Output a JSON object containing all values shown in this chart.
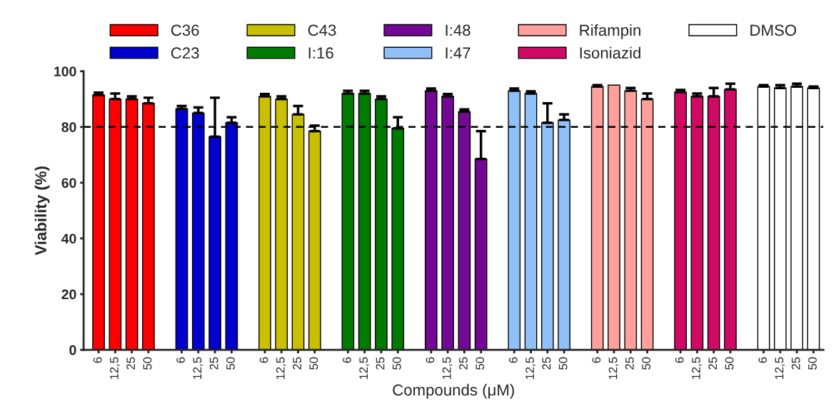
{
  "chart_data": {
    "type": "bar",
    "xlabel": "Compounds (μM)",
    "ylabel": "Viability (%)",
    "categories": [
      "6",
      "12,5",
      "25",
      "50",
      null,
      "6",
      "12,5",
      "25",
      "50",
      null,
      "6",
      "12,5",
      "25",
      "50",
      null,
      "6",
      "12,5",
      "25",
      "50",
      null,
      "6",
      "12,5",
      "25",
      "50",
      null,
      "6",
      "12,5",
      "25",
      "50",
      null,
      "6",
      "12,5",
      "25",
      "50",
      null,
      "6",
      "12,5",
      "25",
      "50",
      null,
      "6",
      "12,5",
      "25",
      "50"
    ],
    "series": [
      {
        "name": "C36",
        "color": "#ff0000",
        "values": [
          91.5,
          90,
          90,
          88.5,
          null,
          null,
          null,
          null,
          null,
          null,
          null,
          null,
          null,
          null,
          null,
          null,
          null,
          null,
          null,
          null,
          null,
          null,
          null,
          null,
          null,
          null,
          null,
          null,
          null,
          null,
          null,
          null,
          null,
          null,
          null,
          null,
          null,
          null,
          null,
          null,
          null,
          null,
          null,
          null
        ],
        "errors": [
          0.8,
          2,
          1,
          2,
          null,
          null,
          null,
          null,
          null,
          null,
          null,
          null,
          null,
          null,
          null,
          null,
          null,
          null,
          null,
          null,
          null,
          null,
          null,
          null,
          null,
          null,
          null,
          null,
          null,
          null,
          null,
          null,
          null,
          null,
          null,
          null,
          null,
          null,
          null,
          null,
          null,
          null,
          null,
          null
        ]
      },
      {
        "name": "C23",
        "color": "#0000cc",
        "values": [
          null,
          null,
          null,
          null,
          null,
          86.5,
          85,
          76.5,
          81.5,
          null,
          null,
          null,
          null,
          null,
          null,
          null,
          null,
          null,
          null,
          null,
          null,
          null,
          null,
          null,
          null,
          null,
          null,
          null,
          null,
          null,
          null,
          null,
          null,
          null,
          null,
          null,
          null,
          null,
          null,
          null,
          null,
          null,
          null,
          null
        ],
        "errors": [
          null,
          null,
          null,
          null,
          null,
          1,
          2,
          14,
          2,
          null,
          null,
          null,
          null,
          null,
          null,
          null,
          null,
          null,
          null,
          null,
          null,
          null,
          null,
          null,
          null,
          null,
          null,
          null,
          null,
          null,
          null,
          null,
          null,
          null,
          null,
          null,
          null,
          null,
          null,
          null,
          null,
          null,
          null,
          null
        ]
      },
      {
        "name": "C43",
        "color": "#c8c000",
        "values": [
          null,
          null,
          null,
          null,
          null,
          null,
          null,
          null,
          null,
          null,
          91,
          90,
          84.5,
          78.5,
          null,
          null,
          null,
          null,
          null,
          null,
          null,
          null,
          null,
          null,
          null,
          null,
          null,
          null,
          null,
          null,
          null,
          null,
          null,
          null,
          null,
          null,
          null,
          null,
          null,
          null,
          null,
          null,
          null,
          null
        ],
        "errors": [
          null,
          null,
          null,
          null,
          null,
          null,
          null,
          null,
          null,
          null,
          0.8,
          1,
          3,
          2,
          null,
          null,
          null,
          null,
          null,
          null,
          null,
          null,
          null,
          null,
          null,
          null,
          null,
          null,
          null,
          null,
          null,
          null,
          null,
          null,
          null,
          null,
          null,
          null,
          null,
          null,
          null,
          null,
          null,
          null
        ]
      },
      {
        "name": "I:16",
        "color": "#007a00",
        "values": [
          null,
          null,
          null,
          null,
          null,
          null,
          null,
          null,
          null,
          null,
          null,
          null,
          null,
          null,
          null,
          92,
          92,
          90,
          79.5,
          null,
          null,
          null,
          null,
          null,
          null,
          null,
          null,
          null,
          null,
          null,
          null,
          null,
          null,
          null,
          null,
          null,
          null,
          null,
          null,
          null,
          null,
          null,
          null,
          null
        ],
        "errors": [
          null,
          null,
          null,
          null,
          null,
          null,
          null,
          null,
          null,
          null,
          null,
          null,
          null,
          null,
          null,
          1,
          1,
          1,
          4,
          null,
          null,
          null,
          null,
          null,
          null,
          null,
          null,
          null,
          null,
          null,
          null,
          null,
          null,
          null,
          null,
          null,
          null,
          null,
          null,
          null,
          null,
          null,
          null,
          null
        ]
      },
      {
        "name": "I:48",
        "color": "#730894",
        "values": [
          null,
          null,
          null,
          null,
          null,
          null,
          null,
          null,
          null,
          null,
          null,
          null,
          null,
          null,
          null,
          null,
          null,
          null,
          null,
          null,
          93,
          91,
          85.5,
          68.5,
          null,
          null,
          null,
          null,
          null,
          null,
          null,
          null,
          null,
          null,
          null,
          null,
          null,
          null,
          null,
          null,
          null,
          null,
          null,
          null
        ],
        "errors": [
          null,
          null,
          null,
          null,
          null,
          null,
          null,
          null,
          null,
          null,
          null,
          null,
          null,
          null,
          null,
          null,
          null,
          null,
          null,
          null,
          0.8,
          0.8,
          0.8,
          10,
          null,
          null,
          null,
          null,
          null,
          null,
          null,
          null,
          null,
          null,
          null,
          null,
          null,
          null,
          null,
          null,
          null,
          null,
          null,
          null
        ]
      },
      {
        "name": "I:47",
        "color": "#90c0f8",
        "values": [
          null,
          null,
          null,
          null,
          null,
          null,
          null,
          null,
          null,
          null,
          null,
          null,
          null,
          null,
          null,
          null,
          null,
          null,
          null,
          null,
          null,
          null,
          null,
          null,
          null,
          93,
          92,
          81.5,
          82.5,
          null,
          null,
          null,
          null,
          null,
          null,
          null,
          null,
          null,
          null,
          null,
          null,
          null,
          null,
          null
        ],
        "errors": [
          null,
          null,
          null,
          null,
          null,
          null,
          null,
          null,
          null,
          null,
          null,
          null,
          null,
          null,
          null,
          null,
          null,
          null,
          null,
          null,
          null,
          null,
          null,
          null,
          null,
          0.8,
          0.8,
          7,
          2,
          null,
          null,
          null,
          null,
          null,
          null,
          null,
          null,
          null,
          null,
          null,
          null,
          null,
          null,
          null
        ]
      },
      {
        "name": "Rifampin",
        "color": "#ffa09c",
        "values": [
          null,
          null,
          null,
          null,
          null,
          null,
          null,
          null,
          null,
          null,
          null,
          null,
          null,
          null,
          null,
          null,
          null,
          null,
          null,
          null,
          null,
          null,
          null,
          null,
          null,
          null,
          null,
          null,
          null,
          null,
          94.5,
          95,
          93,
          90,
          null,
          null,
          null,
          null,
          null,
          null,
          null,
          null,
          null,
          null
        ],
        "errors": [
          null,
          null,
          null,
          null,
          null,
          null,
          null,
          null,
          null,
          null,
          null,
          null,
          null,
          null,
          null,
          null,
          null,
          null,
          null,
          null,
          null,
          null,
          null,
          null,
          null,
          null,
          null,
          null,
          null,
          null,
          0.5,
          null,
          1,
          2,
          null,
          null,
          null,
          null,
          null,
          null,
          null,
          null,
          null,
          null
        ]
      },
      {
        "name": "Isoniazid",
        "color": "#d00a64",
        "values": [
          null,
          null,
          null,
          null,
          null,
          null,
          null,
          null,
          null,
          null,
          null,
          null,
          null,
          null,
          null,
          null,
          null,
          null,
          null,
          null,
          null,
          null,
          null,
          null,
          null,
          null,
          null,
          null,
          null,
          null,
          null,
          null,
          null,
          null,
          null,
          92.5,
          91,
          91,
          93.5,
          null,
          null,
          null,
          null,
          null
        ],
        "errors": [
          null,
          null,
          null,
          null,
          null,
          null,
          null,
          null,
          null,
          null,
          null,
          null,
          null,
          null,
          null,
          null,
          null,
          null,
          null,
          null,
          null,
          null,
          null,
          null,
          null,
          null,
          null,
          null,
          null,
          null,
          null,
          null,
          null,
          null,
          null,
          0.8,
          1,
          3,
          2,
          null,
          null,
          null,
          null,
          null
        ]
      },
      {
        "name": "DMSO",
        "color": "#ffffff",
        "values": [
          null,
          null,
          null,
          null,
          null,
          null,
          null,
          null,
          null,
          null,
          null,
          null,
          null,
          null,
          null,
          null,
          null,
          null,
          null,
          null,
          null,
          null,
          null,
          null,
          null,
          null,
          null,
          null,
          null,
          null,
          null,
          null,
          null,
          null,
          null,
          null,
          null,
          null,
          null,
          null,
          94.5,
          94,
          94.5,
          94
        ],
        "errors": [
          null,
          null,
          null,
          null,
          null,
          null,
          null,
          null,
          null,
          null,
          null,
          null,
          null,
          null,
          null,
          null,
          null,
          null,
          null,
          null,
          null,
          null,
          null,
          null,
          null,
          null,
          null,
          null,
          null,
          null,
          null,
          null,
          null,
          null,
          null,
          null,
          null,
          null,
          null,
          null,
          0.5,
          1,
          1,
          0.5
        ]
      }
    ],
    "ylim": [
      0,
      100
    ],
    "yticks": [
      0,
      20,
      40,
      60,
      80,
      100
    ],
    "ref_lines": [
      {
        "axis": "y",
        "value": 80,
        "line_style": "dashed",
        "color": "#000000"
      }
    ],
    "legend": "top",
    "grid": false
  }
}
